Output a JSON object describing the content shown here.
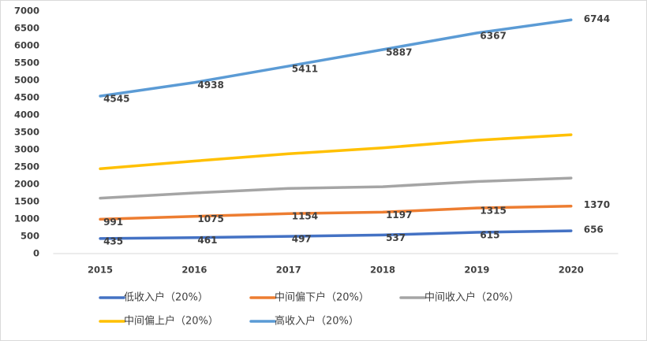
{
  "chart_data": {
    "type": "line",
    "categories": [
      "2015",
      "2016",
      "2017",
      "2018",
      "2019",
      "2020"
    ],
    "series": [
      {
        "name": "低收入户（20%）",
        "color": "#4472c4",
        "values": [
          435,
          461,
          497,
          537,
          615,
          656
        ],
        "show_labels": true
      },
      {
        "name": "中间偏下户（20%）",
        "color": "#ed7d31",
        "values": [
          991,
          1075,
          1154,
          1197,
          1315,
          1370
        ],
        "show_labels": true
      },
      {
        "name": "中间收入户（20%）",
        "color": "#a5a5a5",
        "values": [
          1600,
          1750,
          1880,
          1930,
          2080,
          2180
        ],
        "show_labels": false
      },
      {
        "name": "中间偏上户（20%）",
        "color": "#ffc000",
        "values": [
          2450,
          2670,
          2880,
          3050,
          3270,
          3430
        ],
        "show_labels": false
      },
      {
        "name": "高收入户（20%）",
        "color": "#5b9bd5",
        "values": [
          4545,
          4938,
          5411,
          5887,
          6367,
          6744
        ],
        "show_labels": true
      }
    ],
    "ylim": [
      0,
      7000
    ],
    "yticks": [
      0,
      500,
      1000,
      1500,
      2000,
      2500,
      3000,
      3500,
      4000,
      4500,
      5000,
      5500,
      6000,
      6500,
      7000
    ],
    "grid": false,
    "legend": "bottom"
  }
}
